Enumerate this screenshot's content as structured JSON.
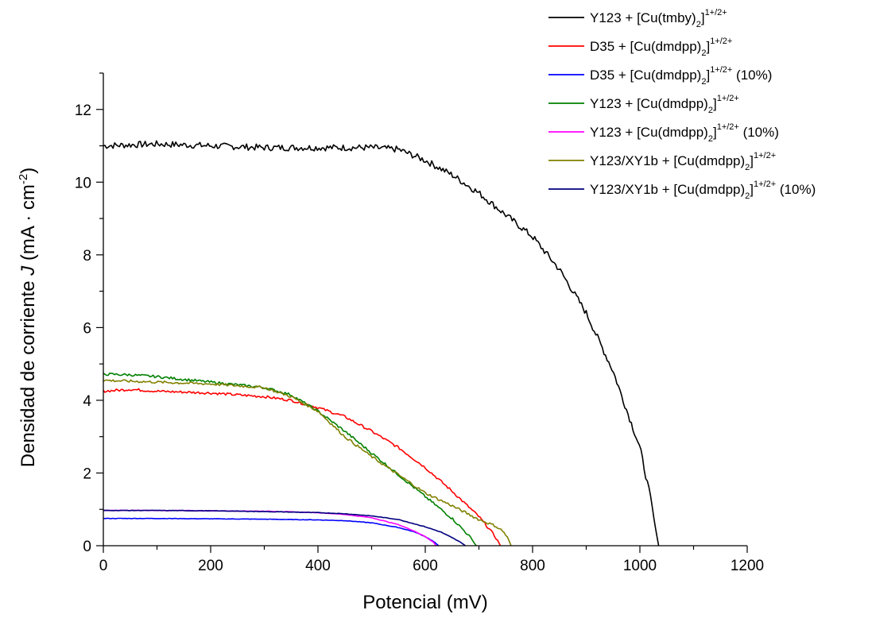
{
  "chart_data": {
    "type": "line",
    "title": "",
    "xlabel": "Potencial (mV)",
    "ylabel": {
      "pre": "Densidad de corriente ",
      "var": "J",
      "unit_pre": " (mA · cm",
      "unit_sup": "-2",
      "unit_post": ")"
    },
    "xlim": [
      0,
      1200
    ],
    "ylim": [
      0,
      13
    ],
    "xticks": [
      0,
      200,
      400,
      600,
      800,
      1000,
      1200
    ],
    "yticks": [
      0,
      2,
      4,
      6,
      8,
      10,
      12
    ],
    "grid": false,
    "legend_position": "top-right",
    "series": [
      {
        "name": {
          "main": "Y123 + [Cu(tmby)",
          "sub": "2",
          "close": "]",
          "sup": "1+/2+",
          "tail": ""
        },
        "color": "#000000",
        "x": [
          0,
          100,
          200,
          300,
          400,
          500,
          550,
          600,
          650,
          700,
          750,
          800,
          850,
          900,
          950,
          1000,
          1020,
          1030,
          1035
        ],
        "y": [
          11.0,
          11.05,
          11.0,
          10.95,
          10.95,
          10.95,
          10.9,
          10.6,
          10.2,
          9.7,
          9.1,
          8.5,
          7.6,
          6.4,
          4.8,
          2.7,
          1.3,
          0.4,
          0
        ]
      },
      {
        "name": {
          "main": "D35 + [Cu(dmdpp)",
          "sub": "2",
          "close": "]",
          "sup": "1+/2+",
          "tail": ""
        },
        "color": "#ff0000",
        "x": [
          0,
          50,
          100,
          200,
          300,
          350,
          400,
          450,
          500,
          550,
          600,
          650,
          700,
          720,
          735,
          740
        ],
        "y": [
          4.25,
          4.3,
          4.25,
          4.2,
          4.1,
          4.0,
          3.8,
          3.55,
          3.15,
          2.7,
          2.15,
          1.5,
          0.8,
          0.45,
          0.15,
          0
        ]
      },
      {
        "name": {
          "main": "D35 + [Cu(dmdpp)",
          "sub": "2",
          "close": "]",
          "sup": "1+/2+",
          "tail": " (10%)"
        },
        "color": "#0000ff",
        "x": [
          0,
          100,
          200,
          300,
          400,
          450,
          500,
          550,
          580,
          600,
          615,
          625
        ],
        "y": [
          0.75,
          0.75,
          0.74,
          0.73,
          0.71,
          0.69,
          0.63,
          0.5,
          0.38,
          0.25,
          0.12,
          0
        ]
      },
      {
        "name": {
          "main": "Y123 + [Cu(dmdpp)",
          "sub": "2",
          "close": "]",
          "sup": "1+/2+",
          "tail": ""
        },
        "color": "#008000",
        "x": [
          0,
          50,
          100,
          200,
          300,
          350,
          400,
          450,
          500,
          550,
          600,
          650,
          680,
          695
        ],
        "y": [
          4.72,
          4.7,
          4.65,
          4.5,
          4.35,
          4.15,
          3.7,
          3.15,
          2.55,
          1.95,
          1.35,
          0.75,
          0.3,
          0
        ]
      },
      {
        "name": {
          "main": "Y123 + [Cu(dmdpp)",
          "sub": "2",
          "close": "]",
          "sup": "1+/2+",
          "tail": " (10%)"
        },
        "color": "#ff00ff",
        "x": [
          0,
          100,
          200,
          300,
          400,
          450,
          500,
          550,
          580,
          600,
          615,
          620
        ],
        "y": [
          0.97,
          0.97,
          0.96,
          0.95,
          0.91,
          0.86,
          0.77,
          0.58,
          0.4,
          0.25,
          0.1,
          0
        ]
      },
      {
        "name": {
          "main": "Y123/XY1b + [Cu(dmdpp)",
          "sub": "2",
          "close": "]",
          "sup": "1+/2+",
          "tail": ""
        },
        "color": "#808000",
        "x": [
          0,
          100,
          200,
          300,
          350,
          400,
          450,
          500,
          550,
          600,
          650,
          700,
          730,
          745,
          755,
          760
        ],
        "y": [
          4.55,
          4.5,
          4.45,
          4.35,
          4.1,
          3.7,
          3.0,
          2.45,
          1.95,
          1.45,
          1.1,
          0.72,
          0.55,
          0.4,
          0.18,
          0
        ]
      },
      {
        "name": {
          "main": "Y123/XY1b + [Cu(dmdpp)",
          "sub": "2",
          "close": "]",
          "sup": "1+/2+",
          "tail": " (10%)"
        },
        "color": "#000080",
        "x": [
          0,
          100,
          200,
          300,
          400,
          450,
          500,
          550,
          600,
          630,
          650,
          665,
          675
        ],
        "y": [
          0.97,
          0.97,
          0.96,
          0.94,
          0.91,
          0.88,
          0.82,
          0.72,
          0.52,
          0.37,
          0.22,
          0.1,
          0
        ]
      }
    ]
  }
}
